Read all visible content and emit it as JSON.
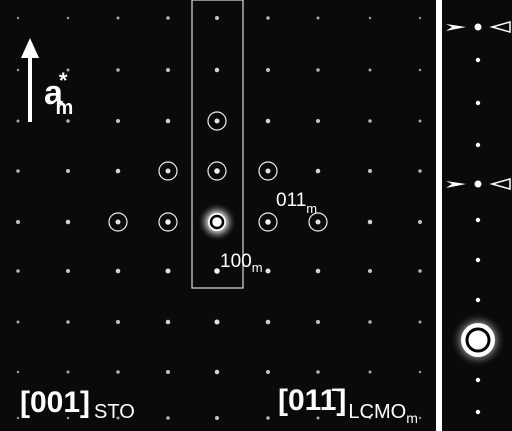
{
  "labels": {
    "axis": {
      "main": "a",
      "sup": "*",
      "sub": "m"
    },
    "spot_011": {
      "main": "011",
      "sub": "m"
    },
    "spot_100": {
      "main": "100",
      "sub": "m"
    },
    "zone_sto": {
      "main": "[001]",
      "sub": "STO"
    },
    "zone_lcmo": {
      "main": "[011̄]",
      "sub": "LCMO",
      "subsub": "m"
    }
  }
}
